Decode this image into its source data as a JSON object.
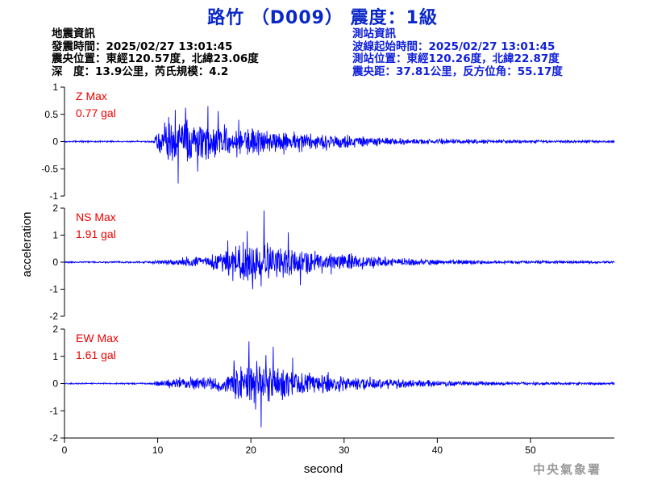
{
  "title": "路竹 （D009） 震度：1級",
  "earthquake_info": {
    "heading": "地震資訊",
    "time": "發震時間：2025/02/27 13:01:45",
    "epicenter": "震央位置：東經120.57度，北緯23.06度",
    "depth_magnitude": "深　度：13.9公里，芮氏規模：4.2"
  },
  "station_info": {
    "heading": "測站資訊",
    "wave_start": "波線起始時間：2025/02/27 13:01:45",
    "location": "測站位置：東經120.26度，北緯22.87度",
    "distance_azimuth": "震央距：37.81公里，反方位角：55.17度"
  },
  "watermark": "中央氣象署",
  "colors": {
    "title": "#0a28c8",
    "station_text": "#1020d8",
    "trace": "#0000ff",
    "max_label": "#ee0000"
  },
  "chart_data": {
    "type": "line",
    "xlabel": "second",
    "ylabel": "acceleration",
    "xlim": [
      0,
      59
    ],
    "xticks": [
      0,
      10,
      20,
      30,
      40,
      50
    ],
    "grid": false,
    "panels": [
      {
        "component": "Z",
        "label": "Z Max",
        "max_text": "0.77 gal",
        "ylim": [
          -1,
          1
        ],
        "yticks": [
          1,
          0.5,
          0,
          -0.5,
          -1
        ],
        "ytick_labels": [
          "1",
          "0.5",
          "0",
          "-0.5",
          "-1"
        ],
        "envelope": [
          [
            0,
            0.02
          ],
          [
            9.5,
            0.02
          ],
          [
            10.3,
            0.45
          ],
          [
            11,
            0.6
          ],
          [
            13,
            0.6
          ],
          [
            15,
            0.5
          ],
          [
            18,
            0.38
          ],
          [
            21,
            0.3
          ],
          [
            25,
            0.25
          ],
          [
            30,
            0.18
          ],
          [
            35,
            0.1
          ],
          [
            40,
            0.07
          ],
          [
            50,
            0.04
          ],
          [
            59,
            0.03
          ]
        ],
        "peaks": [
          [
            12.2,
            -0.77
          ],
          [
            15.4,
            0.65
          ],
          [
            11.9,
            0.58
          ],
          [
            13.0,
            0.62
          ],
          [
            14.3,
            -0.55
          ],
          [
            16.5,
            0.56
          ],
          [
            18.7,
            0.4
          ]
        ]
      },
      {
        "component": "NS",
        "label": "NS Max",
        "max_text": "1.91 gal",
        "ylim": [
          -2,
          2
        ],
        "yticks": [
          2,
          1,
          0,
          -1,
          -2
        ],
        "ytick_labels": [
          "2",
          "1",
          "0",
          "-1",
          "-2"
        ],
        "envelope": [
          [
            0,
            0.04
          ],
          [
            9,
            0.05
          ],
          [
            10,
            0.12
          ],
          [
            12,
            0.18
          ],
          [
            14,
            0.3
          ],
          [
            16,
            0.45
          ],
          [
            18,
            0.9
          ],
          [
            20,
            1.2
          ],
          [
            22,
            0.95
          ],
          [
            24,
            0.8
          ],
          [
            27,
            0.6
          ],
          [
            30,
            0.45
          ],
          [
            33,
            0.3
          ],
          [
            37,
            0.2
          ],
          [
            42,
            0.12
          ],
          [
            50,
            0.08
          ],
          [
            59,
            0.06
          ]
        ],
        "peaks": [
          [
            21.4,
            1.91
          ],
          [
            19.6,
            1.15
          ],
          [
            20.2,
            -1.0
          ],
          [
            24.0,
            1.1
          ],
          [
            21.1,
            -0.9
          ],
          [
            17.5,
            0.8
          ],
          [
            25.3,
            -0.85
          ]
        ]
      },
      {
        "component": "EW",
        "label": "EW Max",
        "max_text": "1.61 gal",
        "ylim": [
          -2,
          2
        ],
        "yticks": [
          2,
          1,
          0,
          -1,
          -2
        ],
        "ytick_labels": [
          "2",
          "1",
          "0",
          "-1",
          "-2"
        ],
        "envelope": [
          [
            0,
            0.03
          ],
          [
            9,
            0.04
          ],
          [
            11,
            0.2
          ],
          [
            13,
            0.3
          ],
          [
            15,
            0.38
          ],
          [
            17,
            0.5
          ],
          [
            19,
            0.95
          ],
          [
            21,
            1.0
          ],
          [
            23,
            0.85
          ],
          [
            25,
            0.7
          ],
          [
            28,
            0.55
          ],
          [
            31,
            0.35
          ],
          [
            35,
            0.25
          ],
          [
            40,
            0.15
          ],
          [
            50,
            0.08
          ],
          [
            59,
            0.06
          ]
        ],
        "peaks": [
          [
            21.1,
            -1.61
          ],
          [
            19.8,
            1.55
          ],
          [
            22.4,
            1.35
          ],
          [
            21.6,
            1.05
          ],
          [
            24.5,
            0.95
          ],
          [
            18.2,
            0.85
          ],
          [
            20.5,
            -0.95
          ]
        ]
      }
    ]
  }
}
